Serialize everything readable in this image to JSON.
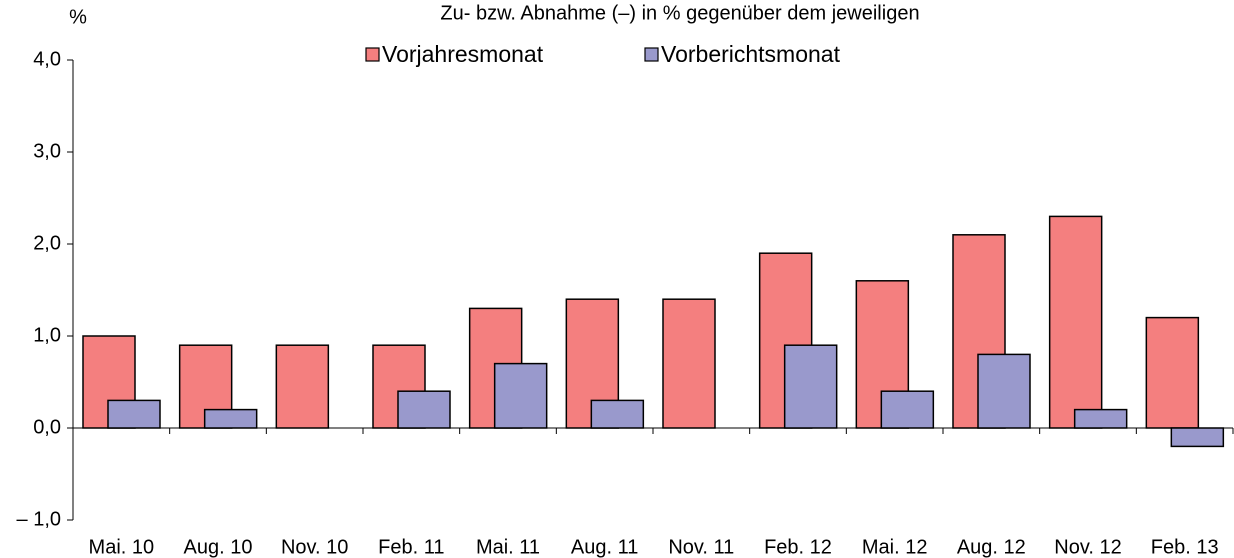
{
  "chart_data": {
    "type": "bar",
    "title": "Zu- bzw. Abnahme (–) in % gegenüber dem jeweiligen",
    "y_label": "%",
    "categories": [
      "Mai. 10",
      "Aug. 10",
      "Nov. 10",
      "Feb. 11",
      "Mai. 11",
      "Aug. 11",
      "Nov. 11",
      "Feb. 12",
      "Mai. 12",
      "Aug. 12",
      "Nov. 12",
      "Feb. 13"
    ],
    "series": [
      {
        "name": "Vorjahresmonat",
        "color": "#f47f7f",
        "values": [
          1.0,
          0.9,
          0.9,
          0.9,
          1.3,
          1.4,
          1.4,
          1.9,
          1.6,
          2.1,
          2.3,
          1.2
        ]
      },
      {
        "name": "Vorberichtsmonat",
        "color": "#9999cc",
        "values": [
          0.3,
          0.2,
          0,
          0.4,
          0.7,
          0.3,
          0,
          0.9,
          0.4,
          0.8,
          0.2,
          -0.2
        ]
      }
    ],
    "ylim": [
      -1.0,
      4.0
    ],
    "yticks": [
      {
        "value": -1.0,
        "label": "– 1,0"
      },
      {
        "value": 0.0,
        "label": "0,0"
      },
      {
        "value": 1.0,
        "label": "1,0"
      },
      {
        "value": 2.0,
        "label": "2,0"
      },
      {
        "value": 3.0,
        "label": "3,0"
      },
      {
        "value": 4.0,
        "label": "4,0"
      }
    ],
    "grid": false,
    "legend": "top"
  }
}
